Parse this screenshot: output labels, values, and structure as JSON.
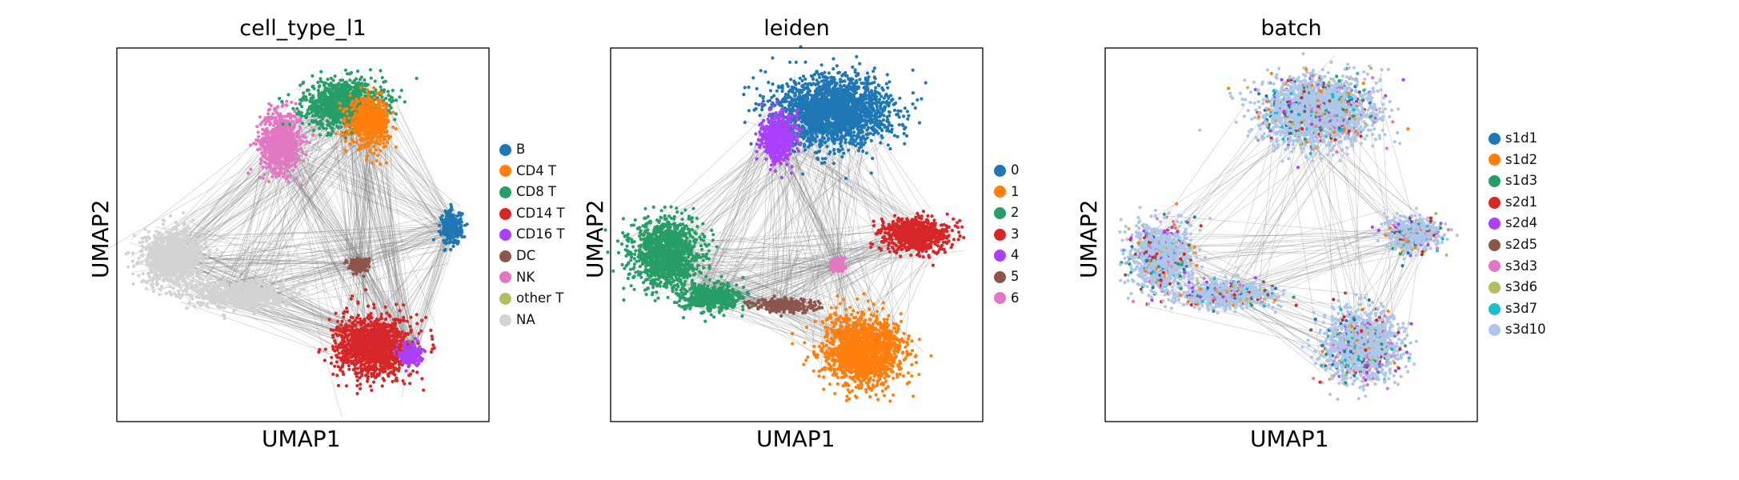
{
  "figure": {
    "background": "#ffffff",
    "edge_color": "#808080"
  },
  "chart_data": [
    {
      "type": "scatter",
      "title": "cell_type_l1",
      "xlabel": "UMAP1",
      "ylabel": "UMAP2",
      "legend_placement": "right",
      "grid": false,
      "legend": [
        {
          "label": "B",
          "color": "#1f77b4"
        },
        {
          "label": "CD4 T",
          "color": "#ff7f0e"
        },
        {
          "label": "CD8 T",
          "color": "#279e68"
        },
        {
          "label": "CD14 T",
          "color": "#d62728"
        },
        {
          "label": "CD16 T",
          "color": "#aa40fc"
        },
        {
          "label": "DC",
          "color": "#8c564b"
        },
        {
          "label": "NK",
          "color": "#e377c2"
        },
        {
          "label": "other T",
          "color": "#b5bd61"
        },
        {
          "label": "NA",
          "color": "#d3d3d3"
        }
      ],
      "regions": [
        {
          "category": "NK",
          "cx": 0.44,
          "cy": 0.75,
          "rx": 0.06,
          "ry": 0.09
        },
        {
          "category": "CD8 T",
          "cx": 0.61,
          "cy": 0.85,
          "rx": 0.12,
          "ry": 0.07
        },
        {
          "category": "CD4 T",
          "cx": 0.68,
          "cy": 0.8,
          "rx": 0.06,
          "ry": 0.07
        },
        {
          "category": "B",
          "cx": 0.9,
          "cy": 0.52,
          "rx": 0.03,
          "ry": 0.05
        },
        {
          "category": "NA",
          "cx": 0.15,
          "cy": 0.44,
          "rx": 0.09,
          "ry": 0.08
        },
        {
          "category": "NA",
          "cx": 0.33,
          "cy": 0.34,
          "rx": 0.13,
          "ry": 0.04
        },
        {
          "category": "DC",
          "cx": 0.65,
          "cy": 0.42,
          "rx": 0.03,
          "ry": 0.02
        },
        {
          "category": "CD14 T",
          "cx": 0.69,
          "cy": 0.2,
          "rx": 0.11,
          "ry": 0.09
        },
        {
          "category": "CD16 T",
          "cx": 0.79,
          "cy": 0.18,
          "rx": 0.03,
          "ry": 0.03
        }
      ]
    },
    {
      "type": "scatter",
      "title": "leiden",
      "xlabel": "UMAP1",
      "ylabel": "UMAP2",
      "legend_placement": "right",
      "grid": false,
      "legend": [
        {
          "label": "0",
          "color": "#1f77b4"
        },
        {
          "label": "1",
          "color": "#ff7f0e"
        },
        {
          "label": "2",
          "color": "#279e68"
        },
        {
          "label": "3",
          "color": "#d62728"
        },
        {
          "label": "4",
          "color": "#aa40fc"
        },
        {
          "label": "5",
          "color": "#8c564b"
        },
        {
          "label": "6",
          "color": "#e377c2"
        }
      ],
      "regions": [
        {
          "category": "0",
          "cx": 0.6,
          "cy": 0.83,
          "rx": 0.17,
          "ry": 0.1
        },
        {
          "category": "4",
          "cx": 0.45,
          "cy": 0.76,
          "rx": 0.05,
          "ry": 0.07
        },
        {
          "category": "2",
          "cx": 0.15,
          "cy": 0.45,
          "rx": 0.1,
          "ry": 0.1
        },
        {
          "category": "2",
          "cx": 0.27,
          "cy": 0.33,
          "rx": 0.09,
          "ry": 0.04
        },
        {
          "category": "5",
          "cx": 0.47,
          "cy": 0.31,
          "rx": 0.09,
          "ry": 0.02
        },
        {
          "category": "1",
          "cx": 0.68,
          "cy": 0.19,
          "rx": 0.12,
          "ry": 0.1
        },
        {
          "category": "3",
          "cx": 0.82,
          "cy": 0.5,
          "rx": 0.1,
          "ry": 0.05
        },
        {
          "category": "6",
          "cx": 0.61,
          "cy": 0.42,
          "rx": 0.02,
          "ry": 0.02
        }
      ]
    },
    {
      "type": "scatter",
      "title": "batch",
      "xlabel": "UMAP1",
      "ylabel": "UMAP2",
      "legend_placement": "right",
      "grid": false,
      "legend": [
        {
          "label": "s1d1",
          "color": "#1f77b4"
        },
        {
          "label": "s1d2",
          "color": "#ff7f0e"
        },
        {
          "label": "s1d3",
          "color": "#279e68"
        },
        {
          "label": "s2d1",
          "color": "#d62728"
        },
        {
          "label": "s2d4",
          "color": "#aa40fc"
        },
        {
          "label": "s2d5",
          "color": "#8c564b"
        },
        {
          "label": "s3d3",
          "color": "#e377c2"
        },
        {
          "label": "s3d6",
          "color": "#b5bd61"
        },
        {
          "label": "s3d7",
          "color": "#17becf"
        },
        {
          "label": "s3d10",
          "color": "#aec7e8"
        }
      ],
      "regions": [
        {
          "category": "s3d10",
          "cx": 0.57,
          "cy": 0.83,
          "rx": 0.17,
          "ry": 0.1
        },
        {
          "category": "s3d10",
          "cx": 0.15,
          "cy": 0.44,
          "rx": 0.09,
          "ry": 0.1
        },
        {
          "category": "s3d10",
          "cx": 0.33,
          "cy": 0.34,
          "rx": 0.13,
          "ry": 0.04
        },
        {
          "category": "s3d10",
          "cx": 0.69,
          "cy": 0.2,
          "rx": 0.11,
          "ry": 0.1
        },
        {
          "category": "s3d10",
          "cx": 0.83,
          "cy": 0.5,
          "rx": 0.08,
          "ry": 0.05
        }
      ]
    }
  ]
}
